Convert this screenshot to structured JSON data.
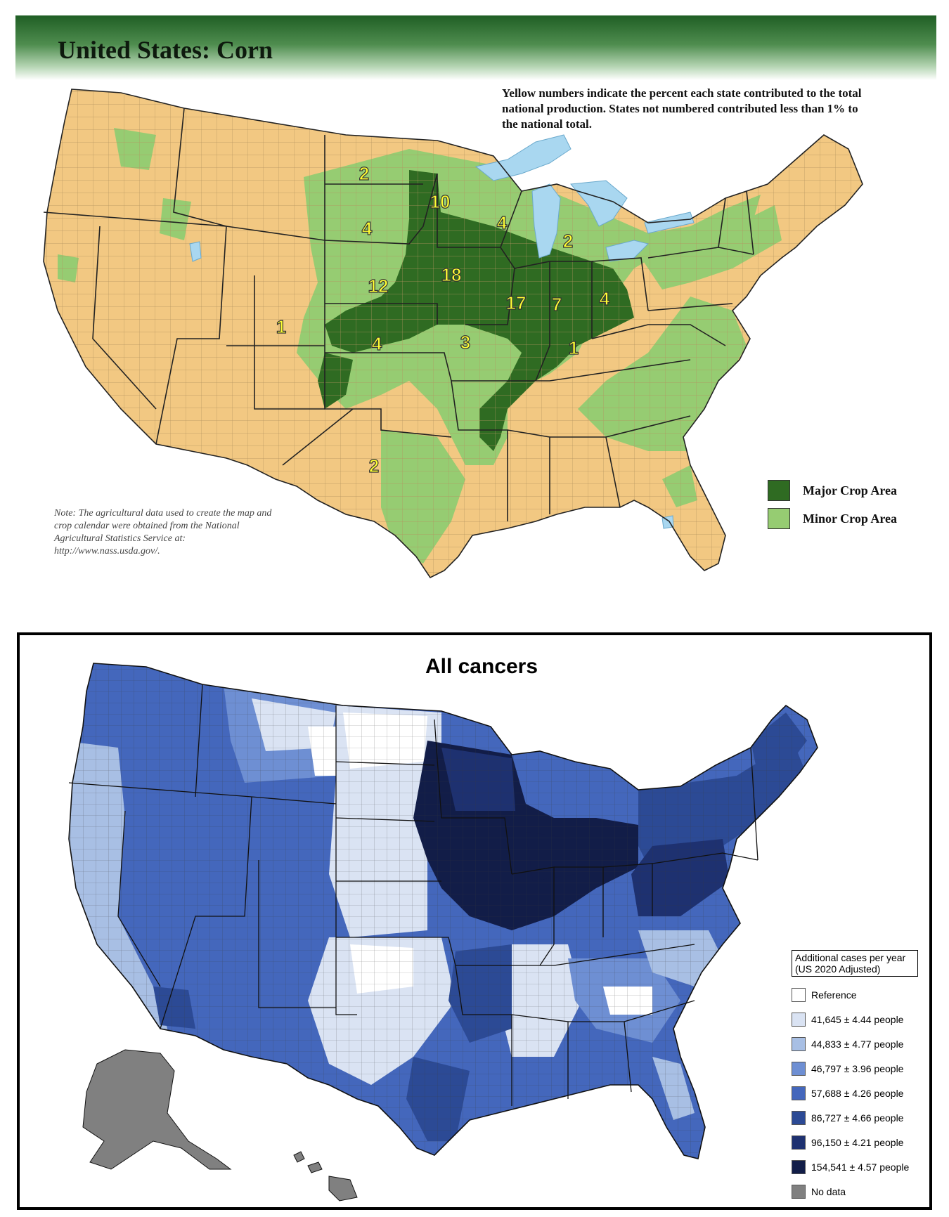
{
  "corn_map": {
    "title": "United States:  Corn",
    "note": "Yellow numbers indicate the percent each state contributed to the total national production.  States not numbered contributed less than 1% to the national total.",
    "source_note": "Note:  The agricultural data used to create the map and crop calendar were obtained from the National Agricultural Statistics Service at: http://www.nass.usda.gov/.",
    "colors": {
      "base": "#f2c882",
      "major": "#2f6b22",
      "minor": "#96cc72",
      "water": "#a9d7f0",
      "number_fill": "#ffff33",
      "header": "#1f5e24"
    },
    "legend": [
      {
        "label": "Major Crop Area",
        "color": "#2f6b22"
      },
      {
        "label": "Minor Crop Area",
        "color": "#96cc72"
      }
    ],
    "state_percents": [
      {
        "state": "North Dakota",
        "value": "2"
      },
      {
        "state": "Minnesota",
        "value": "10"
      },
      {
        "state": "Wisconsin",
        "value": "4"
      },
      {
        "state": "South Dakota",
        "value": "4"
      },
      {
        "state": "Michigan",
        "value": "2"
      },
      {
        "state": "Iowa",
        "value": "18"
      },
      {
        "state": "Nebraska",
        "value": "12"
      },
      {
        "state": "Illinois",
        "value": "17"
      },
      {
        "state": "Indiana",
        "value": "7"
      },
      {
        "state": "Ohio",
        "value": "4"
      },
      {
        "state": "Colorado",
        "value": "1"
      },
      {
        "state": "Kansas",
        "value": "4"
      },
      {
        "state": "Missouri",
        "value": "3"
      },
      {
        "state": "Kentucky",
        "value": "1"
      },
      {
        "state": "Texas",
        "value": "2"
      }
    ]
  },
  "cancer_map": {
    "title": "All cancers",
    "legend_title_line1": "Additional cases per year",
    "legend_title_line2": "(US 2020 Adjusted)",
    "legend": [
      {
        "label": "Reference",
        "color": "#ffffff"
      },
      {
        "label": "41,645 ± 4.44 people",
        "color": "#dae3f3"
      },
      {
        "label": "44,833 ± 4.77 people",
        "color": "#a8bfe4"
      },
      {
        "label": "46,797 ± 3.96 people",
        "color": "#6e8fd3"
      },
      {
        "label": "57,688 ± 4.26 people",
        "color": "#4467bc"
      },
      {
        "label": "86,727 ± 4.66 people",
        "color": "#2c4a95"
      },
      {
        "label": "96,150 ± 4.21 people",
        "color": "#1e3170"
      },
      {
        "label": "154,541 ± 4.57 people",
        "color": "#121d48"
      },
      {
        "label": "No data",
        "color": "#808080"
      }
    ]
  }
}
